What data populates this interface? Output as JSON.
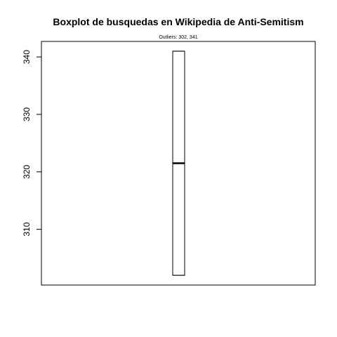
{
  "chart_data": {
    "type": "boxplot",
    "title": "Boxplot de busquedas en Wikipedia de Anti-Semitism",
    "subtitle": "Outliers:  302, 341",
    "xlabel": "",
    "ylabel": "",
    "ylim": [
      300.3,
      342.7
    ],
    "yticks": [
      310,
      320,
      330,
      340
    ],
    "box": {
      "min": 302,
      "q1": 302,
      "median": 321.5,
      "q3": 341,
      "max": 341
    },
    "grid": false
  }
}
